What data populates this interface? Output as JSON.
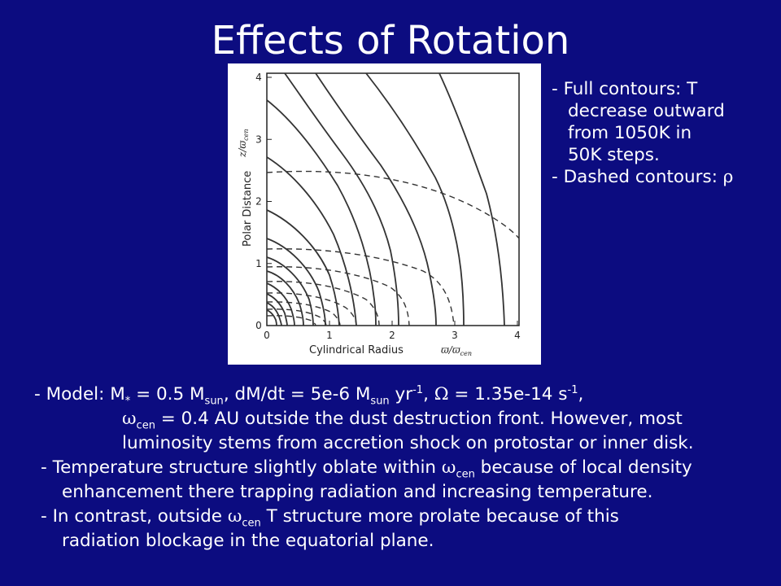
{
  "slide": {
    "title": "Effects of Rotation"
  },
  "figure": {
    "y_axis_label": "Polar Distance",
    "y_axis_var": "z/ϖ",
    "y_axis_var_sub": "cen",
    "x_axis_label": "Cylindrical Radius",
    "x_axis_var": "ϖ/ϖ",
    "x_axis_var_sub": "cen",
    "y_ticks": [
      "0",
      "1",
      "2",
      "3",
      "4"
    ],
    "x_ticks": [
      "0",
      "1",
      "2",
      "3",
      "4"
    ],
    "solid_contour_meaning": "temperature",
    "dashed_contour_meaning": "density"
  },
  "notes": {
    "full_line1": "- Full contours: T",
    "full_line2": "decrease outward",
    "full_line3": "from 1050K in",
    "full_line4": "50K steps.",
    "dashed_prefix": "- Dashed contours: ",
    "dashed_symbol": "ρ"
  },
  "body": {
    "model": {
      "prefix": "- Model: M",
      "star_sub": "*",
      "eq1": " = 0.5 M",
      "sun_sub1": "sun",
      "mdot": ", dM/dt = 5e-6 M",
      "sun_sub2": "sun",
      "yr": " yr",
      "sup_minus1a": "-1",
      "omega_sym": "Ω",
      "omega_val": " = 1.35e-14 s",
      "sup_minus1b": "-1",
      "tail": ","
    },
    "model_line2": {
      "sym": "ω",
      "sub": "cen",
      "text": " = 0.4 AU outside the dust destruction front. However, most"
    },
    "model_line3": "luminosity stems from accretion shock on protostar or inner disk.",
    "temp": {
      "line1_pre": "- Temperature structure slightly oblate within ",
      "sym": "ω",
      "sub": "cen",
      "line1_post": " because of local density",
      "line2": "enhancement there trapping radiation and increasing temperature."
    },
    "contrast": {
      "line1_pre": "- In contrast, outside ",
      "sym": "ω",
      "sub": "cen",
      "line1_post": " T structure more prolate because of this",
      "line2": "radiation blockage in the equatorial plane."
    }
  }
}
